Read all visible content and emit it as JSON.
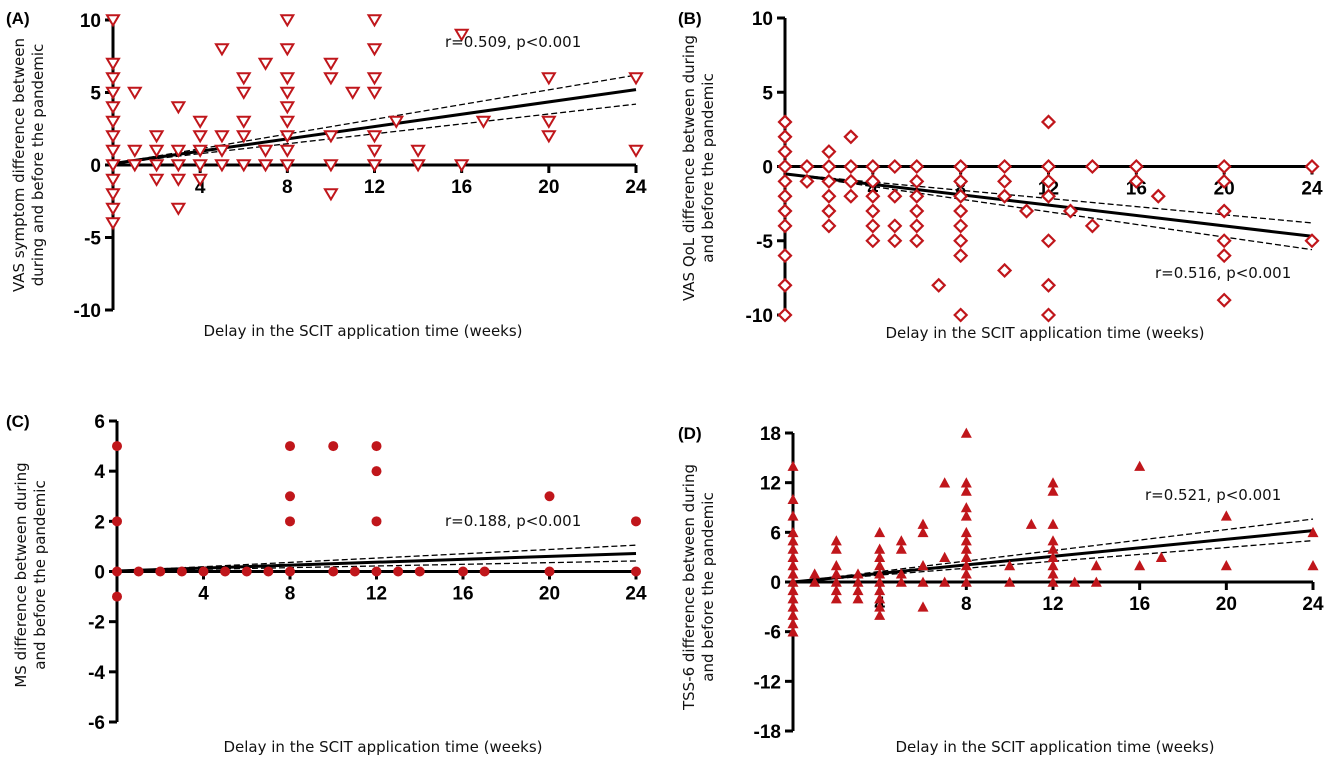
{
  "colors": {
    "marker": "#c0161b",
    "axis": "#000000",
    "fit": "#000000"
  },
  "chart_data": [
    {
      "id": "A",
      "type": "scatter",
      "panel_label": "(A)",
      "xlabel": "Delay in the SCIT application time (weeks)",
      "ylabel_lines": [
        "VAS symptom difference between",
        "during and before the pandemic"
      ],
      "xlim": [
        0,
        24
      ],
      "ylim": [
        -10,
        10
      ],
      "x_ticks": [
        4,
        8,
        12,
        16,
        20,
        24
      ],
      "y_ticks": [
        10,
        5,
        0,
        -5,
        -10
      ],
      "marker": "triangle-down-open",
      "annotation": "r=0.509, p<0.001",
      "fit": {
        "p1": [
          0,
          0.1
        ],
        "p2": [
          24,
          5.2
        ],
        "ci_low_end": 4.2,
        "ci_high_end": 6.2
      },
      "points": [
        [
          0,
          10
        ],
        [
          0,
          7
        ],
        [
          0,
          6
        ],
        [
          0,
          5
        ],
        [
          0,
          4
        ],
        [
          0,
          3
        ],
        [
          0,
          2
        ],
        [
          0,
          1
        ],
        [
          0,
          0
        ],
        [
          0,
          -1
        ],
        [
          0,
          -2
        ],
        [
          0,
          -3
        ],
        [
          0,
          -4
        ],
        [
          1,
          5
        ],
        [
          1,
          1
        ],
        [
          1,
          0
        ],
        [
          2,
          2
        ],
        [
          2,
          1
        ],
        [
          2,
          0
        ],
        [
          2,
          -1
        ],
        [
          3,
          1
        ],
        [
          3,
          0
        ],
        [
          3,
          -1
        ],
        [
          3,
          4
        ],
        [
          3,
          -3
        ],
        [
          4,
          3
        ],
        [
          4,
          2
        ],
        [
          4,
          1
        ],
        [
          4,
          0
        ],
        [
          4,
          -1
        ],
        [
          5,
          1
        ],
        [
          5,
          0
        ],
        [
          5,
          8
        ],
        [
          5,
          2
        ],
        [
          6,
          6
        ],
        [
          6,
          5
        ],
        [
          6,
          3
        ],
        [
          6,
          2
        ],
        [
          6,
          0
        ],
        [
          7,
          7
        ],
        [
          7,
          1
        ],
        [
          7,
          0
        ],
        [
          8,
          10
        ],
        [
          8,
          8
        ],
        [
          8,
          6
        ],
        [
          8,
          5
        ],
        [
          8,
          4
        ],
        [
          8,
          3
        ],
        [
          8,
          2
        ],
        [
          8,
          1
        ],
        [
          8,
          0
        ],
        [
          10,
          7
        ],
        [
          10,
          6
        ],
        [
          10,
          2
        ],
        [
          10,
          0
        ],
        [
          10,
          -2
        ],
        [
          11,
          5
        ],
        [
          12,
          10
        ],
        [
          12,
          8
        ],
        [
          12,
          6
        ],
        [
          12,
          5
        ],
        [
          12,
          2
        ],
        [
          12,
          1
        ],
        [
          12,
          0
        ],
        [
          13,
          3
        ],
        [
          14,
          1
        ],
        [
          14,
          0
        ],
        [
          16,
          9
        ],
        [
          16,
          0
        ],
        [
          17,
          3
        ],
        [
          20,
          6
        ],
        [
          20,
          3
        ],
        [
          20,
          2
        ],
        [
          24,
          6
        ],
        [
          24,
          1
        ]
      ]
    },
    {
      "id": "B",
      "type": "scatter",
      "panel_label": "(B)",
      "xlabel": "Delay in the SCIT application time (weeks)",
      "ylabel_lines": [
        "VAS QoL difference between during",
        "and before the pandemic"
      ],
      "xlim": [
        0,
        24
      ],
      "ylim": [
        -10,
        10
      ],
      "x_ticks": [
        4,
        8,
        12,
        16,
        20,
        24
      ],
      "y_ticks": [
        10,
        5,
        0,
        -5,
        -10
      ],
      "marker": "diamond-open",
      "annotation": "r=0.516, p<0.001",
      "fit": {
        "p1": [
          0,
          -0.5
        ],
        "p2": [
          24,
          -4.7
        ],
        "ci_low_end": -5.6,
        "ci_high_end": -3.8
      },
      "points": [
        [
          0,
          3
        ],
        [
          0,
          2
        ],
        [
          0,
          1
        ],
        [
          0,
          0
        ],
        [
          0,
          -1
        ],
        [
          0,
          -2
        ],
        [
          0,
          -3
        ],
        [
          0,
          -4
        ],
        [
          0,
          -6
        ],
        [
          0,
          -8
        ],
        [
          0,
          -10
        ],
        [
          1,
          0
        ],
        [
          1,
          -1
        ],
        [
          2,
          1
        ],
        [
          2,
          0
        ],
        [
          2,
          -1
        ],
        [
          2,
          -2
        ],
        [
          2,
          -3
        ],
        [
          2,
          -4
        ],
        [
          3,
          2
        ],
        [
          3,
          0
        ],
        [
          3,
          -1
        ],
        [
          3,
          -2
        ],
        [
          4,
          0
        ],
        [
          4,
          -1
        ],
        [
          4,
          -2
        ],
        [
          4,
          -3
        ],
        [
          4,
          -4
        ],
        [
          4,
          -5
        ],
        [
          5,
          0
        ],
        [
          5,
          -2
        ],
        [
          5,
          -4
        ],
        [
          5,
          -5
        ],
        [
          6,
          0
        ],
        [
          6,
          -1
        ],
        [
          6,
          -2
        ],
        [
          6,
          -3
        ],
        [
          6,
          -4
        ],
        [
          6,
          -5
        ],
        [
          7,
          -8
        ],
        [
          8,
          0
        ],
        [
          8,
          -1
        ],
        [
          8,
          -2
        ],
        [
          8,
          -3
        ],
        [
          8,
          -4
        ],
        [
          8,
          -5
        ],
        [
          8,
          -6
        ],
        [
          8,
          -10
        ],
        [
          10,
          0
        ],
        [
          10,
          -1
        ],
        [
          10,
          -2
        ],
        [
          10,
          -7
        ],
        [
          11,
          -3
        ],
        [
          12,
          3
        ],
        [
          12,
          0
        ],
        [
          12,
          -1
        ],
        [
          12,
          -2
        ],
        [
          12,
          -5
        ],
        [
          12,
          -8
        ],
        [
          12,
          -10
        ],
        [
          13,
          -3
        ],
        [
          14,
          0
        ],
        [
          14,
          -4
        ],
        [
          16,
          0
        ],
        [
          16,
          -1
        ],
        [
          17,
          -2
        ],
        [
          20,
          0
        ],
        [
          20,
          -1
        ],
        [
          20,
          -3
        ],
        [
          20,
          -5
        ],
        [
          20,
          -6
        ],
        [
          20,
          -9
        ],
        [
          24,
          0
        ],
        [
          24,
          -5
        ]
      ]
    },
    {
      "id": "C",
      "type": "scatter",
      "panel_label": "(C)",
      "xlabel": "Delay in the SCIT application time (weeks)",
      "ylabel_lines": [
        "MS difference between during",
        "and before the pandemic"
      ],
      "xlim": [
        0,
        24
      ],
      "ylim": [
        -6,
        6
      ],
      "x_ticks": [
        4,
        8,
        12,
        16,
        20,
        24
      ],
      "y_ticks": [
        6,
        4,
        2,
        0,
        -2,
        -4,
        -6
      ],
      "marker": "circle-filled",
      "annotation": "r=0.188, p<0.001",
      "fit": {
        "p1": [
          0,
          0.02
        ],
        "p2": [
          24,
          0.72
        ],
        "ci_low_end": 0.42,
        "ci_high_end": 1.05
      },
      "points": [
        [
          0,
          5
        ],
        [
          0,
          2
        ],
        [
          0,
          0
        ],
        [
          0,
          -1
        ],
        [
          1,
          0
        ],
        [
          2,
          0
        ],
        [
          3,
          0
        ],
        [
          4,
          0
        ],
        [
          5,
          0
        ],
        [
          6,
          0
        ],
        [
          7,
          0
        ],
        [
          8,
          5
        ],
        [
          8,
          3
        ],
        [
          8,
          2
        ],
        [
          8,
          0
        ],
        [
          10,
          5
        ],
        [
          10,
          0
        ],
        [
          11,
          0
        ],
        [
          12,
          5
        ],
        [
          12,
          4
        ],
        [
          12,
          2
        ],
        [
          12,
          0
        ],
        [
          13,
          0
        ],
        [
          14,
          0
        ],
        [
          16,
          0
        ],
        [
          17,
          0
        ],
        [
          20,
          3
        ],
        [
          20,
          0
        ],
        [
          24,
          2
        ],
        [
          24,
          0
        ]
      ]
    },
    {
      "id": "D",
      "type": "scatter",
      "panel_label": "(D)",
      "xlabel": "Delay in the SCIT application time (weeks)",
      "ylabel_lines": [
        "TSS-6 difference between during",
        "and before the pandemic"
      ],
      "xlim": [
        0,
        24
      ],
      "ylim": [
        -18,
        18
      ],
      "x_ticks": [
        4,
        8,
        12,
        16,
        20,
        24
      ],
      "y_ticks": [
        18,
        12,
        6,
        0,
        -6,
        -12,
        -18
      ],
      "marker": "triangle-up-filled",
      "annotation": "r=0.521, p<0.001",
      "fit": {
        "p1": [
          0,
          0
        ],
        "p2": [
          24,
          6.2
        ],
        "ci_low_end": 5.0,
        "ci_high_end": 7.6
      },
      "points": [
        [
          0,
          14
        ],
        [
          0,
          10
        ],
        [
          0,
          8
        ],
        [
          0,
          6
        ],
        [
          0,
          5
        ],
        [
          0,
          4
        ],
        [
          0,
          3
        ],
        [
          0,
          2
        ],
        [
          0,
          1
        ],
        [
          0,
          0
        ],
        [
          0,
          -1
        ],
        [
          0,
          -2
        ],
        [
          0,
          -3
        ],
        [
          0,
          -4
        ],
        [
          0,
          -5
        ],
        [
          0,
          -6
        ],
        [
          1,
          1
        ],
        [
          1,
          0
        ],
        [
          2,
          5
        ],
        [
          2,
          4
        ],
        [
          2,
          2
        ],
        [
          2,
          1
        ],
        [
          2,
          0
        ],
        [
          2,
          -1
        ],
        [
          2,
          -2
        ],
        [
          3,
          1
        ],
        [
          3,
          0
        ],
        [
          3,
          -1
        ],
        [
          3,
          -2
        ],
        [
          4,
          6
        ],
        [
          4,
          4
        ],
        [
          4,
          3
        ],
        [
          4,
          2
        ],
        [
          4,
          1
        ],
        [
          4,
          0
        ],
        [
          4,
          -1
        ],
        [
          4,
          -2
        ],
        [
          4,
          -3
        ],
        [
          4,
          -4
        ],
        [
          5,
          5
        ],
        [
          5,
          4
        ],
        [
          5,
          1
        ],
        [
          5,
          0
        ],
        [
          6,
          7
        ],
        [
          6,
          6
        ],
        [
          6,
          2
        ],
        [
          6,
          0
        ],
        [
          6,
          -3
        ],
        [
          7,
          12
        ],
        [
          7,
          3
        ],
        [
          7,
          0
        ],
        [
          8,
          18
        ],
        [
          8,
          12
        ],
        [
          8,
          11
        ],
        [
          8,
          9
        ],
        [
          8,
          8
        ],
        [
          8,
          6
        ],
        [
          8,
          5
        ],
        [
          8,
          4
        ],
        [
          8,
          3
        ],
        [
          8,
          2
        ],
        [
          8,
          1
        ],
        [
          8,
          0
        ],
        [
          10,
          2
        ],
        [
          10,
          0
        ],
        [
          11,
          7
        ],
        [
          12,
          12
        ],
        [
          12,
          11
        ],
        [
          12,
          7
        ],
        [
          12,
          5
        ],
        [
          12,
          4
        ],
        [
          12,
          3
        ],
        [
          12,
          2
        ],
        [
          12,
          1
        ],
        [
          12,
          0
        ],
        [
          13,
          0
        ],
        [
          14,
          2
        ],
        [
          14,
          0
        ],
        [
          16,
          14
        ],
        [
          16,
          2
        ],
        [
          17,
          3
        ],
        [
          20,
          8
        ],
        [
          20,
          2
        ],
        [
          24,
          6
        ],
        [
          24,
          2
        ]
      ]
    }
  ]
}
